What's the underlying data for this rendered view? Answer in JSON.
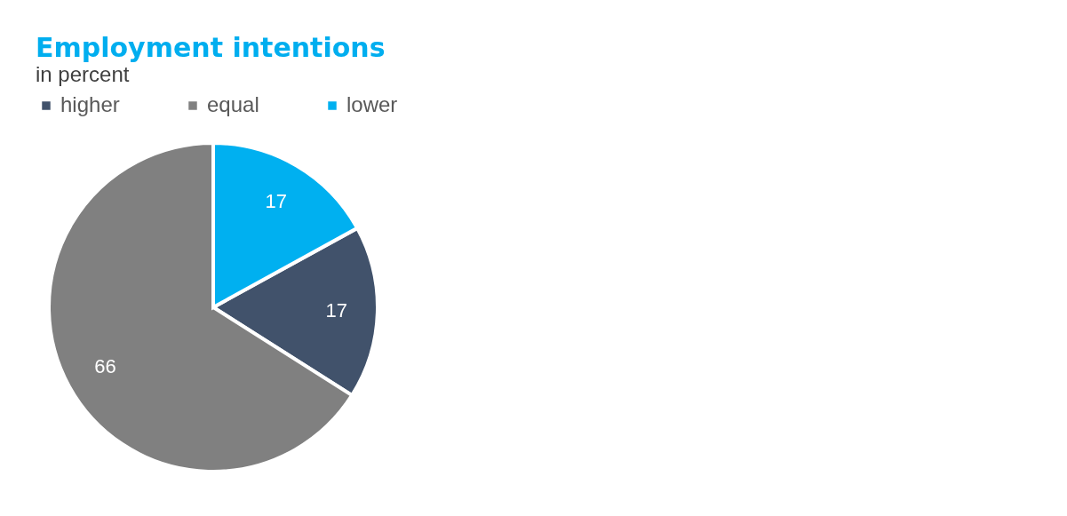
{
  "chart_data": {
    "type": "pie",
    "title": "Employment intentions",
    "subtitle": "in percent",
    "categories": [
      "higher",
      "equal",
      "lower"
    ],
    "values": [
      17,
      66,
      17
    ],
    "colors": [
      "#41526b",
      "#808080",
      "#00b0f0"
    ],
    "data_labels": true,
    "legend": "top left"
  }
}
